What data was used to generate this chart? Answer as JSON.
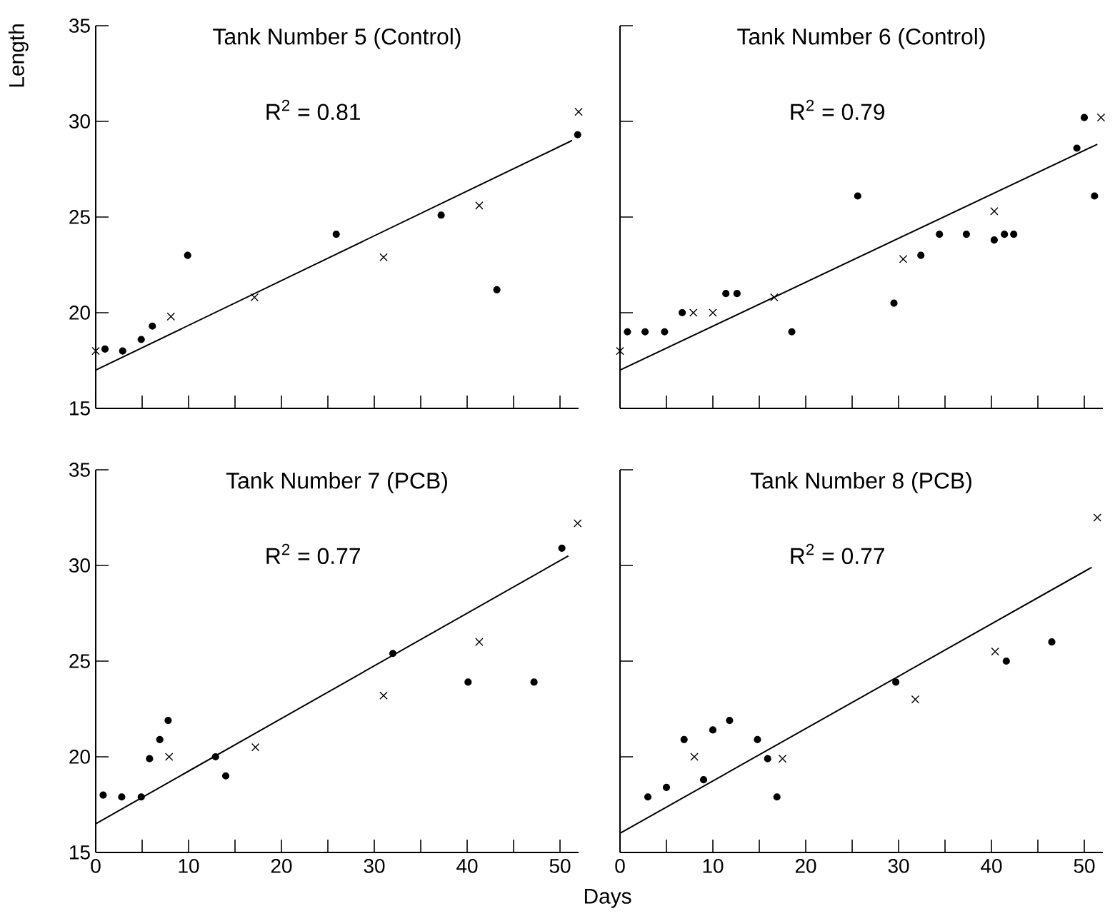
{
  "chart_data": [
    {
      "type": "scatter",
      "title": "Tank Number 5 (Control)",
      "ylabel": "Length",
      "annotations": [
        "R$^{2}$ = 0.81"
      ],
      "xlim": [
        0,
        52
      ],
      "ylim": [
        15,
        35
      ],
      "xticks": [
        0,
        {
          "value": 5,
          "label": null
        },
        10,
        {
          "value": 15,
          "label": null
        },
        20,
        {
          "value": 25,
          "label": null
        },
        30,
        {
          "value": 35,
          "label": null
        },
        40,
        {
          "value": 45,
          "label": null
        },
        50
      ],
      "yticks": [
        15,
        20,
        25,
        30,
        35
      ],
      "tick_labels": "y",
      "grid": false,
      "series": [
        {
          "marker": "circle",
          "color": "#000000",
          "x": [
            1.0,
            2.9,
            4.9,
            6.1,
            9.9,
            25.9,
            37.2,
            43.2,
            51.9
          ],
          "values": [
            18.1,
            18.0,
            18.6,
            19.3,
            23.0,
            24.1,
            25.1,
            21.2,
            29.3
          ]
        },
        {
          "marker": "cross",
          "color": "#000000",
          "x": [
            0,
            8.1,
            17.1,
            31.0,
            41.3,
            52.0
          ],
          "values": [
            18.0,
            19.8,
            20.8,
            22.9,
            25.6,
            30.5
          ]
        },
        {
          "type": "line",
          "marker": "none",
          "color": "#000000",
          "x": [
            0,
            51.3
          ],
          "values": [
            17.0,
            29.0
          ]
        }
      ]
    },
    {
      "type": "scatter",
      "title": "Tank Number 6 (Control)",
      "annotations": [
        "R$^{2}$ = 0.79"
      ],
      "xlim": [
        0,
        52
      ],
      "ylim": [
        15,
        35
      ],
      "xticks": [
        0,
        {
          "value": 5,
          "label": null
        },
        10,
        {
          "value": 15,
          "label": null
        },
        20,
        {
          "value": 25,
          "label": null
        },
        30,
        {
          "value": 35,
          "label": null
        },
        40,
        {
          "value": 45,
          "label": null
        },
        50
      ],
      "yticks": [
        15,
        20,
        25,
        30,
        35
      ],
      "tick_labels": false,
      "grid": false,
      "series": [
        {
          "marker": "circle",
          "color": "#000000",
          "x": [
            0.8,
            2.7,
            4.8,
            6.7,
            11.4,
            12.6,
            18.5,
            25.6,
            29.5,
            32.4,
            34.4,
            37.3,
            40.3,
            41.4,
            42.4,
            49.2,
            50.0,
            51.1
          ],
          "values": [
            19.0,
            19.0,
            19.0,
            20.0,
            21.0,
            21.0,
            19.0,
            26.1,
            20.5,
            23.0,
            24.1,
            24.1,
            23.8,
            24.1,
            24.1,
            28.6,
            30.2,
            26.1
          ]
        },
        {
          "marker": "cross",
          "color": "#000000",
          "x": [
            0,
            7.9,
            10.0,
            16.6,
            30.5,
            40.3,
            51.8
          ],
          "values": [
            18.0,
            20.0,
            20.0,
            20.8,
            22.8,
            25.3,
            30.2
          ]
        },
        {
          "type": "line",
          "marker": "none",
          "color": "#000000",
          "x": [
            0,
            51.4
          ],
          "values": [
            17.0,
            28.8
          ]
        }
      ]
    },
    {
      "type": "scatter",
      "title": "Tank Number 7 (PCB)",
      "xlabel": "Days",
      "annotations": [
        "R$^{2}$ = 0.77"
      ],
      "xlim": [
        0,
        52
      ],
      "ylim": [
        15,
        35
      ],
      "xticks": [
        0,
        {
          "value": 5,
          "label": null
        },
        10,
        {
          "value": 15,
          "label": null
        },
        20,
        {
          "value": 25,
          "label": null
        },
        30,
        {
          "value": 35,
          "label": null
        },
        40,
        {
          "value": 45,
          "label": null
        },
        50
      ],
      "yticks": [
        15,
        20,
        25,
        30,
        35
      ],
      "grid": false,
      "series": [
        {
          "marker": "circle",
          "color": "#000000",
          "x": [
            0.8,
            2.8,
            4.9,
            5.8,
            6.9,
            7.8,
            12.9,
            14.0,
            32.0,
            40.1,
            47.2,
            50.2
          ],
          "values": [
            18.0,
            17.9,
            17.9,
            19.9,
            20.9,
            21.9,
            20.0,
            19.0,
            25.4,
            23.9,
            23.9,
            30.9
          ]
        },
        {
          "marker": "cross",
          "color": "#000000",
          "x": [
            7.9,
            17.2,
            31.0,
            41.3,
            51.9
          ],
          "values": [
            20.0,
            20.5,
            23.2,
            26.0,
            32.2
          ]
        },
        {
          "type": "line",
          "marker": "none",
          "color": "#000000",
          "x": [
            0,
            50.9
          ],
          "values": [
            16.5,
            30.5
          ]
        }
      ]
    },
    {
      "type": "scatter",
      "title": "Tank Number 8 (PCB)",
      "annotations": [
        "R$^{2}$ = 0.77"
      ],
      "xlim": [
        0,
        52
      ],
      "ylim": [
        15,
        35
      ],
      "xticks": [
        0,
        {
          "value": 5,
          "label": null
        },
        10,
        {
          "value": 15,
          "label": null
        },
        20,
        {
          "value": 25,
          "label": null
        },
        30,
        {
          "value": 35,
          "label": null
        },
        40,
        {
          "value": 45,
          "label": null
        },
        50
      ],
      "yticks": [
        15,
        20,
        25,
        30,
        35
      ],
      "tick_labels": "x",
      "grid": false,
      "series": [
        {
          "marker": "circle",
          "color": "#000000",
          "x": [
            3.0,
            5.0,
            6.9,
            9.0,
            10.0,
            11.8,
            14.8,
            15.9,
            16.9,
            29.7,
            41.6,
            46.5
          ],
          "values": [
            17.9,
            18.4,
            20.9,
            18.8,
            21.4,
            21.9,
            20.9,
            19.9,
            17.9,
            23.9,
            25.0,
            26.0
          ]
        },
        {
          "marker": "cross",
          "color": "#000000",
          "x": [
            8.0,
            17.5,
            31.8,
            40.4,
            51.4
          ],
          "values": [
            20.0,
            19.9,
            23.0,
            25.5,
            32.5
          ]
        },
        {
          "type": "line",
          "marker": "none",
          "color": "#000000",
          "x": [
            0,
            50.8
          ],
          "values": [
            16.0,
            29.9
          ]
        }
      ]
    }
  ]
}
